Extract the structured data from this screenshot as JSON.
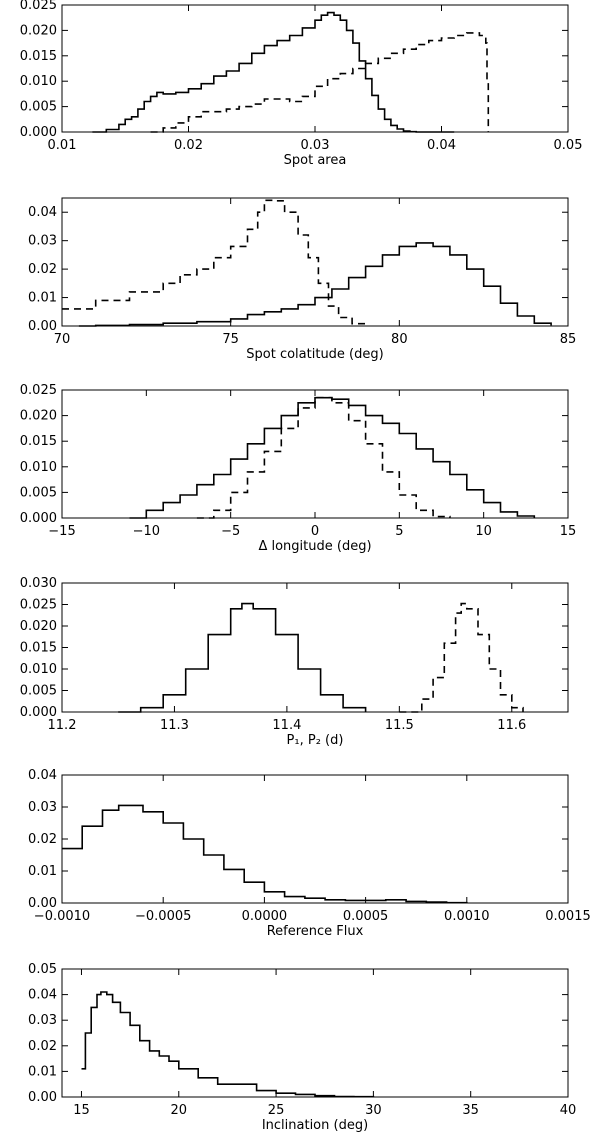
{
  "chart_data": [
    {
      "type": "line",
      "xlabel": "Spot area",
      "xlim": [
        0.01,
        0.05
      ],
      "ylim": [
        0,
        0.025
      ],
      "xticks": [
        "0.01",
        "0.02",
        "0.03",
        "0.04",
        "0.05"
      ],
      "yticks": [
        "0.000",
        "0.005",
        "0.010",
        "0.015",
        "0.020",
        "0.025"
      ],
      "series": [
        {
          "style": "solid",
          "x": [
            0.0124,
            0.0135,
            0.0145,
            0.015,
            0.0155,
            0.016,
            0.0165,
            0.017,
            0.0175,
            0.018,
            0.019,
            0.02,
            0.021,
            0.022,
            0.023,
            0.024,
            0.025,
            0.026,
            0.027,
            0.028,
            0.029,
            0.03,
            0.0305,
            0.031,
            0.0315,
            0.032,
            0.0325,
            0.033,
            0.0335,
            0.034,
            0.0345,
            0.035,
            0.0355,
            0.036,
            0.0365,
            0.037,
            0.0375,
            0.038,
            0.039,
            0.04,
            0.041
          ],
          "y": [
            0,
            0.0005,
            0.0015,
            0.0025,
            0.003,
            0.0045,
            0.006,
            0.007,
            0.0078,
            0.0075,
            0.0078,
            0.0085,
            0.0095,
            0.011,
            0.012,
            0.0135,
            0.0155,
            0.017,
            0.018,
            0.019,
            0.0205,
            0.022,
            0.023,
            0.0235,
            0.023,
            0.022,
            0.02,
            0.0175,
            0.014,
            0.0105,
            0.0072,
            0.0045,
            0.0025,
            0.0013,
            0.0006,
            0.0002,
            5e-05,
            0,
            0,
            0,
            0
          ]
        },
        {
          "style": "dashed",
          "x": [
            0.017,
            0.018,
            0.019,
            0.02,
            0.021,
            0.022,
            0.023,
            0.024,
            0.025,
            0.026,
            0.027,
            0.028,
            0.029,
            0.03,
            0.031,
            0.032,
            0.033,
            0.034,
            0.035,
            0.036,
            0.037,
            0.038,
            0.039,
            0.04,
            0.041,
            0.042,
            0.0425,
            0.043,
            0.0435,
            0.0436,
            0.0437
          ],
          "y": [
            0,
            0.0008,
            0.0018,
            0.003,
            0.004,
            0.004,
            0.0045,
            0.005,
            0.0055,
            0.0065,
            0.0065,
            0.006,
            0.007,
            0.009,
            0.0105,
            0.0115,
            0.0125,
            0.0135,
            0.0145,
            0.0155,
            0.0163,
            0.0172,
            0.018,
            0.0185,
            0.019,
            0.0195,
            0.0195,
            0.019,
            0.0175,
            0.01,
            0
          ]
        }
      ]
    },
    {
      "type": "line",
      "xlabel": "Spot colatitude (deg)",
      "xlim": [
        70,
        85
      ],
      "ylim": [
        0,
        0.045
      ],
      "xticks": [
        "70",
        "75",
        "80",
        "85"
      ],
      "yticks": [
        "0.00",
        "0.01",
        "0.02",
        "0.03",
        "0.04"
      ],
      "series": [
        {
          "style": "solid",
          "x": [
            70.5,
            71,
            72,
            73,
            74,
            75,
            75.5,
            76,
            76.5,
            77,
            77.5,
            78,
            78.5,
            79,
            79.5,
            80,
            80.5,
            81,
            81.5,
            82,
            82.5,
            83,
            83.5,
            84,
            84.5
          ],
          "y": [
            0,
            0.0002,
            0.0005,
            0.001,
            0.0015,
            0.0025,
            0.004,
            0.005,
            0.006,
            0.0075,
            0.01,
            0.013,
            0.017,
            0.021,
            0.025,
            0.028,
            0.0292,
            0.028,
            0.025,
            0.02,
            0.014,
            0.008,
            0.0035,
            0.001,
            0.0002
          ]
        },
        {
          "style": "dashed",
          "x": [
            70,
            71,
            72,
            73,
            73.5,
            74,
            74.5,
            75,
            75.5,
            75.8,
            76,
            76.3,
            76.6,
            77,
            77.3,
            77.6,
            77.9,
            78.2,
            78.6,
            79
          ],
          "y": [
            0.006,
            0.009,
            0.012,
            0.015,
            0.018,
            0.02,
            0.024,
            0.028,
            0.034,
            0.04,
            0.0442,
            0.044,
            0.04,
            0.032,
            0.024,
            0.015,
            0.007,
            0.003,
            0.0008,
            0
          ]
        }
      ]
    },
    {
      "type": "line",
      "xlabel": "Δ longitude (deg)",
      "xlim": [
        -15,
        15
      ],
      "ylim": [
        0,
        0.025
      ],
      "xticks": [
        "−15",
        "−10",
        "−5",
        "0",
        "5",
        "10",
        "15"
      ],
      "yticks": [
        "0.000",
        "0.005",
        "0.010",
        "0.015",
        "0.020",
        "0.025"
      ],
      "series": [
        {
          "style": "solid",
          "x": [
            -11,
            -10,
            -9,
            -8,
            -7,
            -6,
            -5,
            -4,
            -3,
            -2,
            -1,
            0,
            1,
            2,
            3,
            4,
            5,
            6,
            7,
            8,
            9,
            10,
            11,
            12,
            13
          ],
          "y": [
            0,
            0.0015,
            0.003,
            0.0045,
            0.0065,
            0.0085,
            0.0115,
            0.0145,
            0.0175,
            0.02,
            0.0225,
            0.0235,
            0.0232,
            0.022,
            0.02,
            0.0185,
            0.0165,
            0.0135,
            0.011,
            0.0085,
            0.0055,
            0.003,
            0.0012,
            0.0004,
            0
          ]
        },
        {
          "style": "dashed",
          "x": [
            -7,
            -6,
            -5,
            -4,
            -3,
            -2,
            -1,
            0,
            1,
            2,
            3,
            4,
            5,
            6,
            7,
            8
          ],
          "y": [
            0,
            0.0015,
            0.005,
            0.009,
            0.013,
            0.0175,
            0.0215,
            0.0235,
            0.0225,
            0.019,
            0.0145,
            0.009,
            0.0045,
            0.0015,
            0.0003,
            0
          ]
        }
      ]
    },
    {
      "type": "line",
      "xlabel": "P₁, P₂ (d)",
      "xlim": [
        11.2,
        11.65
      ],
      "ylim": [
        0,
        0.03
      ],
      "xticks": [
        "11.2",
        "11.3",
        "11.4",
        "11.5",
        "11.6"
      ],
      "yticks": [
        "0.000",
        "0.005",
        "0.010",
        "0.015",
        "0.020",
        "0.025",
        "0.030"
      ],
      "series": [
        {
          "style": "solid",
          "x": [
            11.25,
            11.27,
            11.29,
            11.31,
            11.33,
            11.35,
            11.36,
            11.37,
            11.39,
            11.41,
            11.43,
            11.45,
            11.47
          ],
          "y": [
            0,
            0.001,
            0.004,
            0.01,
            0.018,
            0.024,
            0.0252,
            0.024,
            0.018,
            0.01,
            0.004,
            0.001,
            0
          ]
        },
        {
          "style": "dashed",
          "x": [
            11.5,
            11.52,
            11.53,
            11.54,
            11.55,
            11.555,
            11.56,
            11.57,
            11.58,
            11.59,
            11.6,
            11.61
          ],
          "y": [
            0,
            0.003,
            0.008,
            0.016,
            0.023,
            0.0252,
            0.024,
            0.018,
            0.01,
            0.004,
            0.001,
            0
          ]
        }
      ]
    },
    {
      "type": "line",
      "xlabel": "Reference Flux",
      "xlim": [
        -0.001,
        0.0015
      ],
      "ylim": [
        0,
        0.04
      ],
      "xticks": [
        "−0.0010",
        "−0.0005",
        "0.0000",
        "0.0005",
        "0.0010",
        "0.0015"
      ],
      "yticks": [
        "0.00",
        "0.01",
        "0.02",
        "0.03",
        "0.04"
      ],
      "series": [
        {
          "style": "solid",
          "x": [
            -0.001,
            -0.0009,
            -0.0008,
            -0.00072,
            -0.0006,
            -0.0005,
            -0.0004,
            -0.0003,
            -0.0002,
            -0.0001,
            0,
            0.0001,
            0.0002,
            0.0003,
            0.0004,
            0.0005,
            0.0006,
            0.0007,
            0.0008,
            0.0009,
            0.001
          ],
          "y": [
            0.017,
            0.024,
            0.029,
            0.0305,
            0.0285,
            0.025,
            0.02,
            0.015,
            0.0105,
            0.0065,
            0.0035,
            0.002,
            0.0015,
            0.001,
            0.0008,
            0.0008,
            0.001,
            0.0005,
            0.0003,
            0.0001,
            0
          ]
        }
      ]
    },
    {
      "type": "line",
      "xlabel": "Inclination (deg)",
      "xlim": [
        14,
        40
      ],
      "ylim": [
        0,
        0.05
      ],
      "xticks": [
        "15",
        "20",
        "25",
        "30",
        "35",
        "40"
      ],
      "yticks": [
        "0.00",
        "0.01",
        "0.02",
        "0.03",
        "0.04",
        "0.05"
      ],
      "series": [
        {
          "style": "solid",
          "x": [
            15,
            15.2,
            15.5,
            15.8,
            16,
            16.3,
            16.6,
            17,
            17.5,
            18,
            18.5,
            19,
            19.5,
            20,
            21,
            22,
            23,
            24,
            25,
            26,
            27,
            28,
            29,
            30
          ],
          "y": [
            0.011,
            0.025,
            0.035,
            0.04,
            0.041,
            0.04,
            0.037,
            0.033,
            0.028,
            0.022,
            0.018,
            0.016,
            0.014,
            0.011,
            0.0075,
            0.005,
            0.005,
            0.0025,
            0.0015,
            0.001,
            0.0005,
            0.0002,
            0.0001,
            0
          ]
        }
      ]
    }
  ]
}
